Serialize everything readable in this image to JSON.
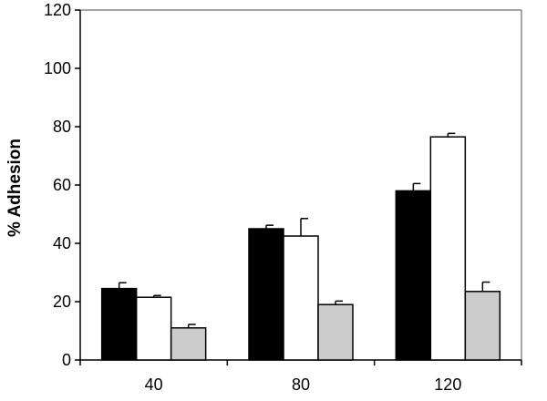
{
  "chart_data": {
    "type": "bar",
    "title": "",
    "xlabel": "",
    "ylabel": "% Adhesion",
    "categories": [
      "40",
      "80",
      "120"
    ],
    "ylim": [
      0,
      120
    ],
    "yticks": [
      0,
      20,
      40,
      60,
      80,
      100,
      120
    ],
    "grid": false,
    "legend": "none",
    "series": [
      {
        "color": "#000000",
        "values": [
          24.5,
          45,
          58
        ],
        "errors": [
          2,
          1.2,
          2.5
        ]
      },
      {
        "color": "#ffffff",
        "values": [
          21.5,
          42.5,
          76.5
        ],
        "errors": [
          0.6,
          6,
          1.2
        ]
      },
      {
        "color": "#cccccc",
        "values": [
          11,
          19,
          23.5
        ],
        "errors": [
          1.2,
          1.2,
          3.2
        ]
      }
    ]
  }
}
